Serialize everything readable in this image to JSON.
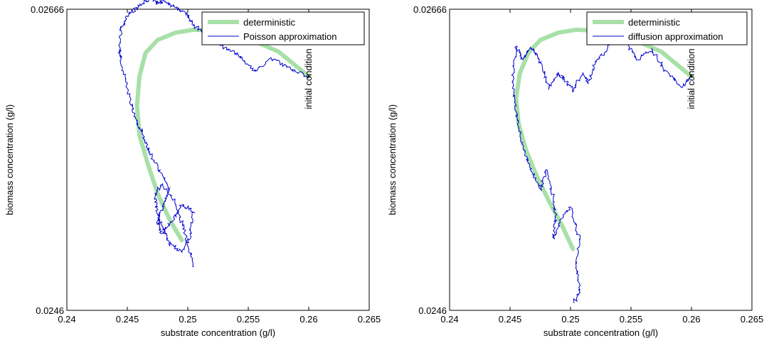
{
  "chart_data": [
    {
      "type": "line",
      "xlabel": "substrate concentration (g/l)",
      "ylabel": "biomass concentration (g/l)",
      "xlim": [
        0.24,
        0.265
      ],
      "ylim": [
        0.0246,
        0.02666
      ],
      "xticks": [
        "0.24",
        "0.245",
        "0.25",
        "0.255",
        "0.26",
        "0.265"
      ],
      "yticks": [
        "0.0246",
        "0.02666"
      ],
      "legend": {
        "position": "top-right",
        "entries": [
          "deterministic",
          "Poisson approximation"
        ]
      },
      "annotation": {
        "text": "initial condition",
        "x": 0.26,
        "y": 0.0262
      },
      "grid": false,
      "series": [
        {
          "name": "deterministic",
          "color": "#a8e0a8",
          "x": [
            0.26,
            0.2575,
            0.255,
            0.2525,
            0.2505,
            0.249,
            0.2475,
            0.2465,
            0.246,
            0.2458,
            0.246,
            0.2467,
            0.2475,
            0.2485,
            0.2495
          ],
          "y": [
            0.0262,
            0.02637,
            0.02646,
            0.02651,
            0.02652,
            0.0265,
            0.02645,
            0.02636,
            0.0262,
            0.026,
            0.0258,
            0.0256,
            0.0254,
            0.02522,
            0.02508
          ]
        },
        {
          "name": "Poisson approximation",
          "color": "#0000cc",
          "x": [
            0.26,
            0.2585,
            0.257,
            0.2555,
            0.2545,
            0.2535,
            0.2525,
            0.2515,
            0.2505,
            0.25,
            0.249,
            0.248,
            0.2475,
            0.247,
            0.246,
            0.245,
            0.2445,
            0.2443,
            0.2445,
            0.245,
            0.2455,
            0.246,
            0.2465,
            0.247,
            0.2478,
            0.2485,
            0.248,
            0.2475,
            0.2478,
            0.2488,
            0.2495,
            0.2505,
            0.2502,
            0.2495,
            0.2485,
            0.248,
            0.2475,
            0.2473,
            0.2478,
            0.2488,
            0.2495,
            0.25,
            0.2505
          ],
          "y": [
            0.0262,
            0.02625,
            0.02632,
            0.02624,
            0.02633,
            0.02638,
            0.02642,
            0.02648,
            0.02655,
            0.02662,
            0.02667,
            0.02672,
            0.0267,
            0.02674,
            0.02668,
            0.02662,
            0.02653,
            0.0264,
            0.0263,
            0.02612,
            0.02595,
            0.02585,
            0.02575,
            0.02565,
            0.02553,
            0.02542,
            0.02532,
            0.02521,
            0.02512,
            0.02522,
            0.02532,
            0.02528,
            0.02512,
            0.025,
            0.02506,
            0.02515,
            0.02525,
            0.02538,
            0.02546,
            0.02536,
            0.0252,
            0.02506,
            0.0249
          ]
        }
      ]
    },
    {
      "type": "line",
      "xlabel": "substrate concentration (g/l)",
      "ylabel": "biomass concentration (g/l)",
      "xlim": [
        0.24,
        0.265
      ],
      "ylim": [
        0.0246,
        0.02666
      ],
      "xticks": [
        "0.24",
        "0.245",
        "0.25",
        "0.255",
        "0.26",
        "0.265"
      ],
      "yticks": [
        "0.0246",
        "0.02666"
      ],
      "legend": {
        "position": "top-right",
        "entries": [
          "deterministic",
          "diffusion approximation"
        ]
      },
      "annotation": {
        "text": "initial condition",
        "x": 0.26,
        "y": 0.0262
      },
      "grid": false,
      "series": [
        {
          "name": "deterministic",
          "color": "#a8e0a8",
          "x": [
            0.26,
            0.2575,
            0.255,
            0.2525,
            0.2505,
            0.249,
            0.2475,
            0.2465,
            0.2458,
            0.2455,
            0.2457,
            0.2463,
            0.2472,
            0.2482,
            0.2493,
            0.2502
          ],
          "y": [
            0.0262,
            0.02637,
            0.02646,
            0.02651,
            0.02652,
            0.0265,
            0.02645,
            0.02636,
            0.02622,
            0.02605,
            0.02588,
            0.0257,
            0.02552,
            0.02535,
            0.02518,
            0.02502
          ]
        },
        {
          "name": "diffusion approximation",
          "color": "#0000cc",
          "x": [
            0.26,
            0.2592,
            0.258,
            0.2568,
            0.2555,
            0.2545,
            0.2535,
            0.253,
            0.252,
            0.2515,
            0.251,
            0.2502,
            0.2495,
            0.249,
            0.2482,
            0.2475,
            0.2468,
            0.246,
            0.2455,
            0.2452,
            0.2454,
            0.2458,
            0.2462,
            0.2468,
            0.2475,
            0.248,
            0.2485,
            0.2488,
            0.2486,
            0.2492,
            0.25,
            0.2507,
            0.2505,
            0.2508,
            0.2503
          ],
          "y": [
            0.0262,
            0.02613,
            0.02622,
            0.02638,
            0.02632,
            0.02644,
            0.02652,
            0.02638,
            0.0263,
            0.02615,
            0.02622,
            0.0261,
            0.02618,
            0.02622,
            0.02612,
            0.0263,
            0.0264,
            0.02632,
            0.02642,
            0.0262,
            0.026,
            0.02583,
            0.02568,
            0.02555,
            0.02543,
            0.02556,
            0.0254,
            0.02525,
            0.0251,
            0.02522,
            0.0253,
            0.0251,
            0.0249,
            0.02475,
            0.02465
          ]
        }
      ]
    }
  ]
}
